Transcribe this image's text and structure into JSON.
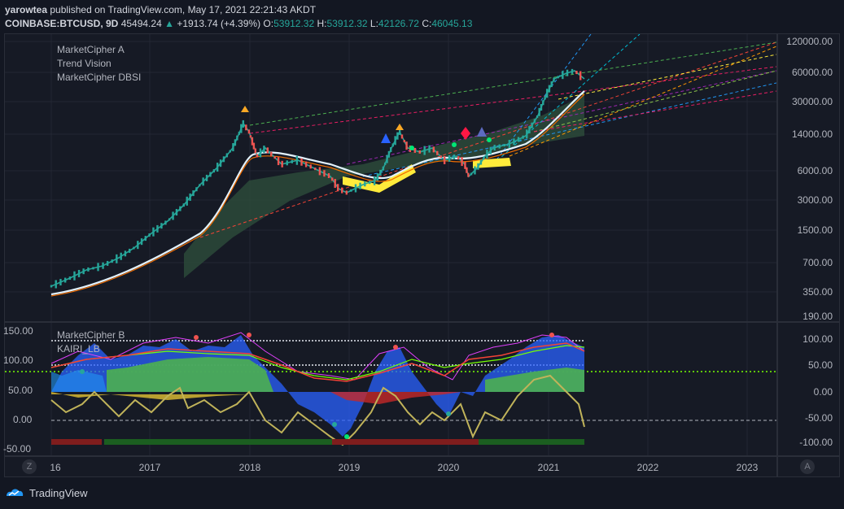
{
  "header": {
    "author": "yarowtea",
    "published_text": "published on TradingView.com, May 17, 2021 22:21:43 AKDT",
    "symbol": "COINBASE:BTCUSD, 9D",
    "last": "45494.24",
    "change": "+1913.74 (+4.39%)",
    "o_label": "O:",
    "o_value": "53912.32",
    "h_label": "H:",
    "h_value": "53912.32",
    "l_label": "L:",
    "l_value": "42126.72",
    "c_label": "C:",
    "c_value": "46045.13"
  },
  "main_pane": {
    "indicators": [
      "MarketCipher A",
      "Trend Vision",
      "MarketCipher DBSI"
    ],
    "price_labels": [
      "120000.00",
      "60000.00",
      "30000.00",
      "14000.00",
      "6000.00",
      "3000.00",
      "1500.00",
      "700.00",
      "350.00",
      "190.00"
    ]
  },
  "osc_pane": {
    "indicators": [
      "MarketCipher B",
      "KAIRI_LB"
    ],
    "left_labels": [
      "150.00",
      "100.00",
      "50.00",
      "0.00",
      "-50.00"
    ],
    "right_labels": [
      "100.00",
      "50.00",
      "0.00",
      "-50.00",
      "-100.00"
    ]
  },
  "time_axis": {
    "labels": [
      "16",
      "2017",
      "2018",
      "2019",
      "2020",
      "2021",
      "2022",
      "2023"
    ],
    "left_button": "Z",
    "right_button": "A"
  },
  "footer": {
    "brand": "TradingView"
  },
  "colors": {
    "background": "#131722",
    "up": "#26a69a",
    "down": "#ef5350",
    "wave_blue": "#2962ff",
    "money_flow_green": "#4caf50"
  }
}
